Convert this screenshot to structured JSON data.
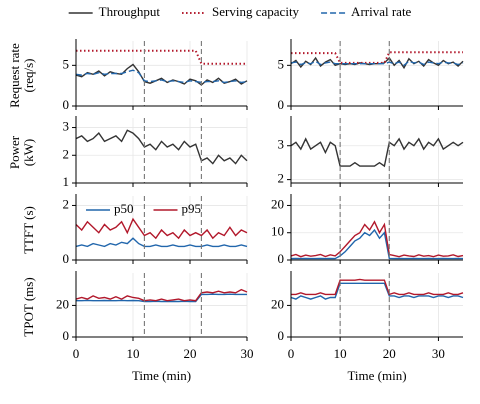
{
  "chart_data": [
    {
      "type": "line",
      "legend": "top",
      "ylabel": [
        "Request rate",
        "(req/s)"
      ],
      "xlim": [
        0,
        30
      ],
      "ylim": [
        0,
        7.5
      ],
      "yticks": [
        0,
        5
      ],
      "vlines": [
        12,
        22
      ],
      "x": [
        0,
        1,
        2,
        3,
        4,
        5,
        6,
        7,
        8,
        9,
        10,
        11,
        12,
        13,
        14,
        15,
        16,
        17,
        18,
        19,
        20,
        21,
        22,
        23,
        24,
        25,
        26,
        27,
        28,
        29,
        30
      ],
      "series": [
        {
          "name": "Throughput",
          "color": "#333333",
          "dash": "solid",
          "values": [
            3.8,
            3.6,
            4.1,
            3.9,
            4.3,
            3.7,
            4.2,
            4.0,
            3.9,
            4.6,
            5.1,
            4.2,
            3.0,
            2.8,
            3.1,
            3.4,
            2.9,
            3.2,
            3.0,
            2.7,
            3.3,
            3.1,
            2.6,
            3.2,
            2.9,
            3.4,
            2.8,
            3.0,
            3.3,
            2.7,
            3.1
          ]
        },
        {
          "name": "Serving capacity",
          "color": "#b2182b",
          "dash": "dotted",
          "values": [
            6.8,
            6.8,
            6.8,
            6.8,
            6.8,
            6.8,
            6.8,
            6.8,
            6.8,
            6.8,
            6.8,
            6.8,
            6.8,
            6.8,
            6.8,
            6.8,
            6.8,
            6.8,
            6.8,
            6.8,
            6.8,
            6.8,
            5.2,
            5.2,
            5.2,
            5.2,
            5.2,
            5.2,
            5.2,
            5.2,
            5.2
          ]
        },
        {
          "name": "Arrival rate",
          "color": "#2166ac",
          "dash": "dashed",
          "values": [
            3.9,
            3.8,
            4.0,
            3.9,
            4.1,
            3.9,
            4.0,
            4.0,
            4.0,
            4.2,
            4.4,
            4.1,
            3.1,
            3.0,
            3.1,
            3.2,
            3.0,
            3.1,
            3.0,
            2.9,
            3.1,
            3.0,
            2.9,
            3.0,
            3.0,
            3.1,
            2.9,
            3.0,
            3.1,
            2.9,
            3.0
          ]
        }
      ]
    },
    {
      "type": "line",
      "xlim": [
        0,
        35
      ],
      "ylim": [
        0,
        7.5
      ],
      "yticks": [
        0,
        5
      ],
      "vlines": [
        10,
        20
      ],
      "x": [
        0,
        1,
        2,
        3,
        4,
        5,
        6,
        7,
        8,
        9,
        10,
        11,
        12,
        13,
        14,
        15,
        16,
        17,
        18,
        19,
        20,
        21,
        22,
        23,
        24,
        25,
        26,
        27,
        28,
        29,
        30,
        31,
        32,
        33,
        34,
        35
      ],
      "series": [
        {
          "name": "Throughput",
          "color": "#333333",
          "dash": "solid",
          "values": [
            5.2,
            5.6,
            4.8,
            5.5,
            5.1,
            5.9,
            4.9,
            5.4,
            5.7,
            5.0,
            5.2,
            5.1,
            5.2,
            5.1,
            5.3,
            5.2,
            5.1,
            5.2,
            5.2,
            5.3,
            5.9,
            5.0,
            5.6,
            4.7,
            5.8,
            5.2,
            5.5,
            4.9,
            5.7,
            5.3,
            5.0,
            5.6,
            5.2,
            5.4,
            4.9,
            5.5
          ]
        },
        {
          "name": "Serving capacity",
          "color": "#b2182b",
          "dash": "dotted",
          "values": [
            6.5,
            6.5,
            6.5,
            6.5,
            6.5,
            6.5,
            6.5,
            6.5,
            6.5,
            6.5,
            5.3,
            5.3,
            5.3,
            5.3,
            5.3,
            5.3,
            5.3,
            5.3,
            5.3,
            5.3,
            6.6,
            6.6,
            6.6,
            6.6,
            6.6,
            6.6,
            6.6,
            6.6,
            6.6,
            6.6,
            6.6,
            6.6,
            6.6,
            6.6,
            6.6,
            6.6
          ]
        },
        {
          "name": "Arrival rate",
          "color": "#2166ac",
          "dash": "dashed",
          "values": [
            5.3,
            5.4,
            5.1,
            5.3,
            5.2,
            5.5,
            5.1,
            5.3,
            5.4,
            5.2,
            5.2,
            5.2,
            5.2,
            5.2,
            5.2,
            5.2,
            5.2,
            5.2,
            5.2,
            5.2,
            5.4,
            5.2,
            5.4,
            5.0,
            5.5,
            5.3,
            5.4,
            5.1,
            5.4,
            5.3,
            5.2,
            5.4,
            5.3,
            5.3,
            5.1,
            5.3
          ]
        }
      ]
    },
    {
      "type": "line",
      "ylabel": [
        "Power",
        "(kW)"
      ],
      "xlim": [
        0,
        30
      ],
      "ylim": [
        1,
        3.2
      ],
      "yticks": [
        1,
        2,
        3
      ],
      "vlines": [
        12,
        22
      ],
      "x": [
        0,
        1,
        2,
        3,
        4,
        5,
        6,
        7,
        8,
        9,
        10,
        11,
        12,
        13,
        14,
        15,
        16,
        17,
        18,
        19,
        20,
        21,
        22,
        23,
        24,
        25,
        26,
        27,
        28,
        29,
        30
      ],
      "series": [
        {
          "name": "Power",
          "color": "#333333",
          "dash": "solid",
          "values": [
            2.6,
            2.7,
            2.5,
            2.6,
            2.8,
            2.5,
            2.6,
            2.7,
            2.5,
            2.9,
            2.8,
            2.6,
            2.3,
            2.4,
            2.2,
            2.5,
            2.3,
            2.4,
            2.2,
            2.5,
            2.3,
            2.4,
            1.8,
            1.9,
            1.7,
            2.0,
            1.8,
            1.9,
            1.7,
            2.0,
            1.8
          ]
        }
      ]
    },
    {
      "type": "line",
      "xlim": [
        0,
        35
      ],
      "ylim": [
        1.9,
        3.7
      ],
      "yticks": [
        2,
        3
      ],
      "vlines": [
        10,
        20
      ],
      "x": [
        0,
        1,
        2,
        3,
        4,
        5,
        6,
        7,
        8,
        9,
        10,
        11,
        12,
        13,
        14,
        15,
        16,
        17,
        18,
        19,
        20,
        21,
        22,
        23,
        24,
        25,
        26,
        27,
        28,
        29,
        30,
        31,
        32,
        33,
        34,
        35
      ],
      "series": [
        {
          "name": "Power",
          "color": "#333333",
          "dash": "solid",
          "values": [
            3.0,
            3.1,
            2.9,
            3.2,
            2.9,
            3.0,
            3.1,
            2.8,
            3.1,
            3.0,
            2.4,
            2.4,
            2.4,
            2.5,
            2.4,
            2.4,
            2.4,
            2.4,
            2.5,
            2.4,
            3.1,
            3.0,
            3.2,
            2.9,
            3.1,
            3.0,
            3.2,
            2.9,
            3.1,
            3.0,
            3.2,
            2.9,
            3.0,
            3.1,
            3.0,
            3.1
          ]
        }
      ]
    },
    {
      "type": "line",
      "legend": "upper left",
      "ylabel": [
        "TTFT (s)"
      ],
      "xlim": [
        0,
        30
      ],
      "ylim": [
        0,
        2.2
      ],
      "yticks": [
        0,
        2
      ],
      "vlines": [
        12,
        22
      ],
      "x": [
        0,
        1,
        2,
        3,
        4,
        5,
        6,
        7,
        8,
        9,
        10,
        11,
        12,
        13,
        14,
        15,
        16,
        17,
        18,
        19,
        20,
        21,
        22,
        23,
        24,
        25,
        26,
        27,
        28,
        29,
        30
      ],
      "series": [
        {
          "name": "p50",
          "color": "#2166ac",
          "dash": "solid",
          "values": [
            0.5,
            0.55,
            0.5,
            0.6,
            0.55,
            0.5,
            0.6,
            0.55,
            0.65,
            0.6,
            0.8,
            0.6,
            0.5,
            0.5,
            0.55,
            0.5,
            0.5,
            0.55,
            0.5,
            0.5,
            0.55,
            0.5,
            0.5,
            0.55,
            0.5,
            0.5,
            0.55,
            0.5,
            0.5,
            0.55,
            0.5
          ]
        },
        {
          "name": "p95",
          "color": "#b2182b",
          "dash": "solid",
          "values": [
            1.3,
            1.1,
            1.4,
            1.2,
            1.0,
            1.3,
            1.1,
            1.2,
            1.4,
            1.0,
            1.5,
            1.2,
            0.9,
            1.0,
            0.8,
            1.1,
            0.9,
            1.0,
            0.8,
            1.1,
            0.9,
            1.0,
            0.9,
            1.1,
            0.8,
            1.0,
            0.9,
            1.2,
            0.9,
            1.1,
            1.0
          ]
        }
      ]
    },
    {
      "type": "line",
      "xlim": [
        0,
        35
      ],
      "ylim": [
        0,
        22
      ],
      "yticks": [
        0,
        10,
        20
      ],
      "vlines": [
        10,
        20
      ],
      "x": [
        0,
        1,
        2,
        3,
        4,
        5,
        6,
        7,
        8,
        9,
        10,
        11,
        12,
        13,
        14,
        15,
        16,
        17,
        18,
        19,
        20,
        21,
        22,
        23,
        24,
        25,
        26,
        27,
        28,
        29,
        30,
        31,
        32,
        33,
        34,
        35
      ],
      "series": [
        {
          "name": "p50",
          "color": "#2166ac",
          "dash": "solid",
          "values": [
            0.5,
            0.6,
            0.5,
            0.6,
            0.5,
            0.5,
            0.6,
            0.5,
            0.6,
            0.5,
            1.5,
            3,
            5,
            7,
            8,
            10,
            9,
            11,
            8,
            10,
            0.6,
            0.5,
            0.6,
            0.5,
            0.5,
            0.6,
            0.5,
            0.5,
            0.6,
            0.5,
            0.5,
            0.6,
            0.5,
            0.5,
            0.6,
            0.5
          ]
        },
        {
          "name": "p95",
          "color": "#b2182b",
          "dash": "solid",
          "values": [
            1.5,
            2,
            1.2,
            1.8,
            1.4,
            1.6,
            2,
            1.3,
            1.9,
            1.5,
            3,
            5,
            7,
            9,
            10,
            13,
            11,
            14,
            10,
            13,
            2,
            1.6,
            1.2,
            1.8,
            1.5,
            1.3,
            1.9,
            1.4,
            1.6,
            1.2,
            1.8,
            1.4,
            1.5,
            1.9,
            1.3,
            1.6
          ]
        }
      ]
    },
    {
      "type": "line",
      "ylabel": [
        "TPOT (ms)"
      ],
      "xlabel": "Time (min)",
      "xlim": [
        0,
        30
      ],
      "xticks": [
        0,
        10,
        20,
        30
      ],
      "ylim": [
        0,
        38
      ],
      "yticks": [
        0,
        20
      ],
      "vlines": [
        12,
        22
      ],
      "x": [
        0,
        1,
        2,
        3,
        4,
        5,
        6,
        7,
        8,
        9,
        10,
        11,
        12,
        13,
        14,
        15,
        16,
        17,
        18,
        19,
        20,
        21,
        22,
        23,
        24,
        25,
        26,
        27,
        28,
        29,
        30
      ],
      "series": [
        {
          "name": "p50",
          "color": "#2166ac",
          "dash": "solid",
          "values": [
            23,
            23,
            23.2,
            23,
            23,
            23.1,
            23,
            23,
            23.2,
            23,
            23.1,
            23,
            22.5,
            22.5,
            22.6,
            22.5,
            22.4,
            22.5,
            22.5,
            22.6,
            22.5,
            22.5,
            27,
            27,
            27.1,
            27,
            27,
            27.1,
            27,
            27,
            27
          ]
        },
        {
          "name": "p95",
          "color": "#b2182b",
          "dash": "solid",
          "values": [
            24,
            25,
            24,
            26,
            24.5,
            25,
            24,
            25.5,
            24,
            26,
            25,
            24.5,
            23,
            23.5,
            23,
            24,
            23,
            23.5,
            24,
            23,
            23.5,
            23,
            28,
            28.5,
            28,
            29,
            28,
            28.5,
            28,
            30,
            28.5
          ]
        }
      ]
    },
    {
      "type": "line",
      "xlabel": "Time (min)",
      "xlim": [
        0,
        35
      ],
      "xticks": [
        0,
        10,
        20,
        30
      ],
      "ylim": [
        0,
        38
      ],
      "yticks": [
        0,
        20
      ],
      "vlines": [
        10,
        20
      ],
      "x": [
        0,
        1,
        2,
        3,
        4,
        5,
        6,
        7,
        8,
        9,
        10,
        11,
        12,
        13,
        14,
        15,
        16,
        17,
        18,
        19,
        20,
        21,
        22,
        23,
        24,
        25,
        26,
        27,
        28,
        29,
        30,
        31,
        32,
        33,
        34,
        35
      ],
      "series": [
        {
          "name": "p50",
          "color": "#2166ac",
          "dash": "solid",
          "values": [
            25,
            24,
            26,
            25,
            24,
            25,
            26,
            24,
            25,
            25,
            34,
            34,
            34,
            34,
            34,
            34,
            34,
            34,
            34,
            34,
            26,
            26,
            25,
            26,
            26,
            25,
            26,
            26,
            26,
            25,
            26,
            26,
            25,
            26,
            26,
            25
          ]
        },
        {
          "name": "p95",
          "color": "#b2182b",
          "dash": "solid",
          "values": [
            27,
            27,
            28,
            27,
            27,
            27,
            28,
            27,
            27,
            27,
            36,
            36,
            36,
            36,
            36.5,
            36,
            36,
            36,
            36,
            36,
            27,
            28,
            27,
            27,
            28,
            27,
            27,
            27,
            28,
            27,
            27,
            27,
            28,
            27,
            27,
            28
          ]
        }
      ]
    }
  ]
}
